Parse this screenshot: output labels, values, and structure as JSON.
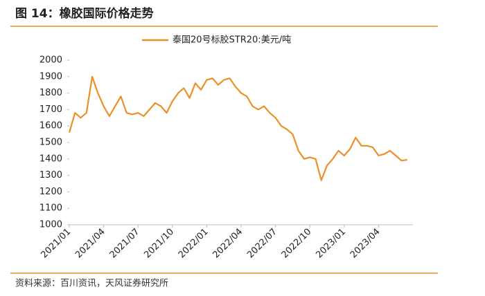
{
  "chart_data": {
    "type": "line",
    "title": "图 14：橡胶国际价格走势",
    "source": "资料来源：百川资讯，天风证券研究所",
    "categories": [
      "2021/01",
      null,
      null,
      null,
      null,
      null,
      "2021/04",
      null,
      null,
      null,
      null,
      null,
      "2021/07",
      null,
      null,
      null,
      null,
      null,
      "2021/10",
      null,
      null,
      null,
      null,
      null,
      "2022/01",
      null,
      null,
      null,
      null,
      null,
      "2022/04",
      null,
      null,
      null,
      null,
      null,
      "2022/07",
      null,
      null,
      null,
      null,
      null,
      "2022/10",
      null,
      null,
      null,
      null,
      null,
      "2023/01",
      null,
      null,
      null,
      null,
      null,
      "2023/04",
      null,
      null,
      null,
      null,
      null
    ],
    "series": [
      {
        "name": "泰国20号标胶STR20:美元/吨",
        "color": "#ec8f25",
        "values": [
          1560,
          1680,
          1650,
          1680,
          1900,
          1800,
          1720,
          1660,
          1720,
          1780,
          1680,
          1670,
          1680,
          1660,
          1700,
          1740,
          1720,
          1680,
          1750,
          1800,
          1830,
          1770,
          1860,
          1820,
          1880,
          1890,
          1850,
          1880,
          1890,
          1840,
          1800,
          1780,
          1720,
          1700,
          1720,
          1680,
          1650,
          1600,
          1580,
          1550,
          1450,
          1400,
          1410,
          1400,
          1270,
          1360,
          1400,
          1450,
          1420,
          1460,
          1530,
          1480,
          1480,
          1470,
          1420,
          1430,
          1450,
          1420,
          1390,
          1395
        ]
      }
    ],
    "ylim": [
      1000,
      2000
    ],
    "yticks": [
      1000,
      1100,
      1200,
      1300,
      1400,
      1500,
      1600,
      1700,
      1800,
      1900,
      2000
    ],
    "legend": "top"
  }
}
